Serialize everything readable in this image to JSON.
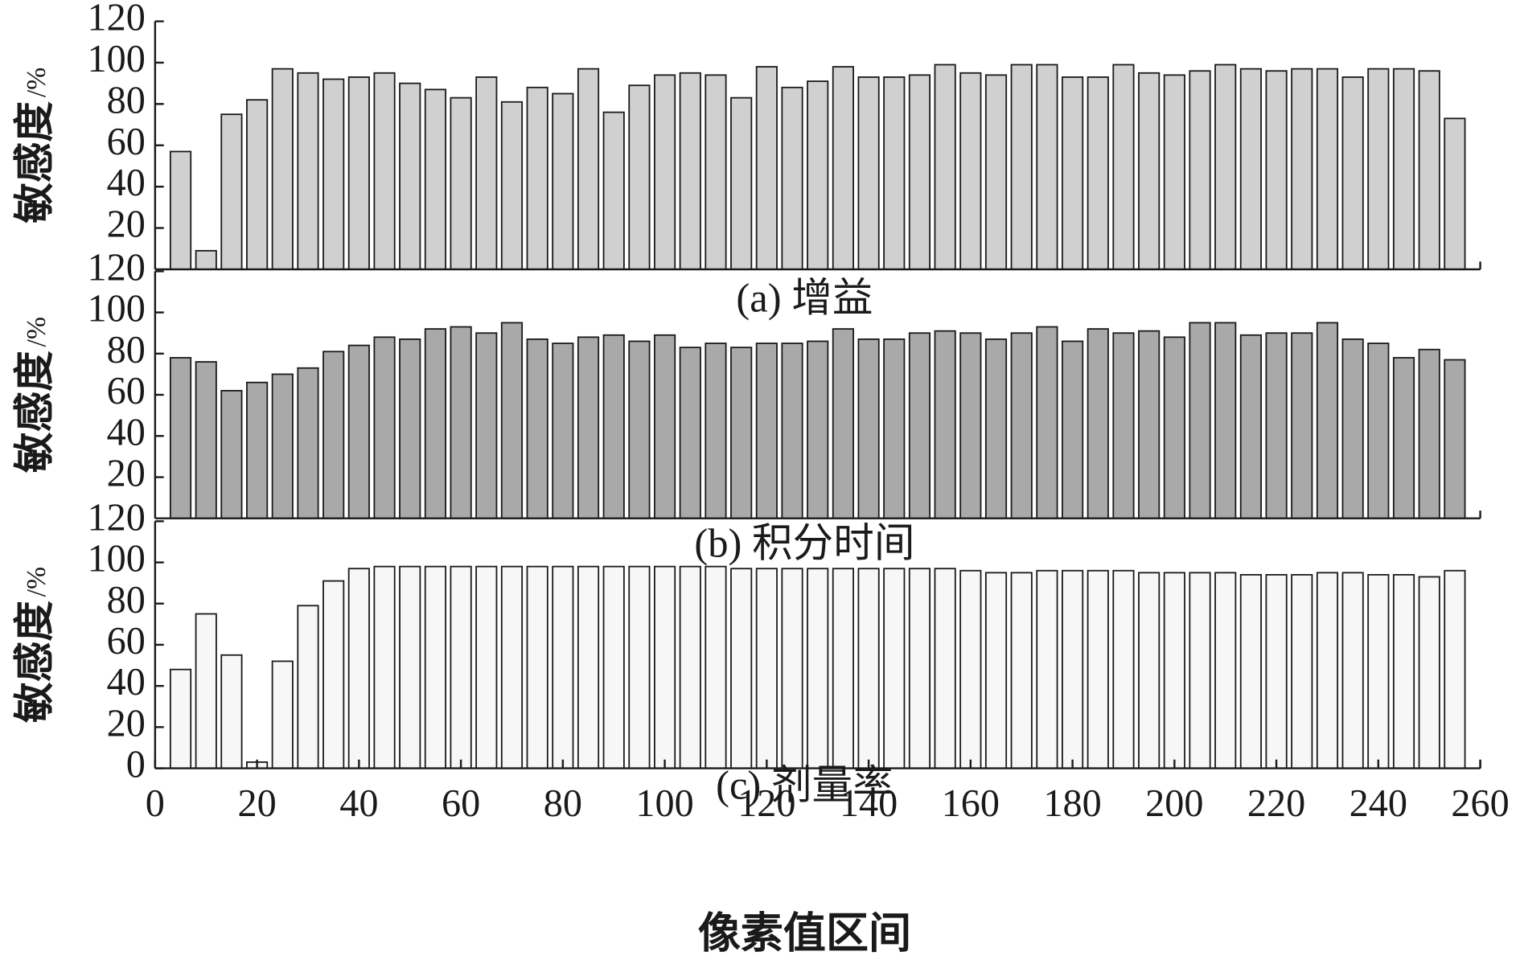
{
  "chart_data": [
    {
      "type": "bar",
      "caption": "(a) 增益",
      "y_label": "敏感度",
      "y_unit": "/%",
      "color": "#d0d0d0",
      "x": [
        5,
        10,
        15,
        20,
        25,
        30,
        35,
        40,
        45,
        50,
        55,
        60,
        65,
        70,
        75,
        80,
        85,
        90,
        95,
        100,
        105,
        110,
        115,
        120,
        125,
        130,
        135,
        140,
        145,
        150,
        155,
        160,
        165,
        170,
        175,
        180,
        185,
        190,
        195,
        200,
        205,
        210,
        215,
        220,
        225,
        230,
        235,
        240,
        245,
        250,
        255
      ],
      "values": [
        57,
        9,
        75,
        82,
        97,
        95,
        92,
        93,
        95,
        90,
        87,
        83,
        93,
        81,
        88,
        85,
        97,
        76,
        89,
        94,
        95,
        94,
        83,
        98,
        88,
        91,
        98,
        93,
        93,
        94,
        99,
        95,
        94,
        99,
        99,
        93,
        93,
        99,
        95,
        94,
        96,
        99,
        97,
        96,
        97,
        97,
        93,
        97,
        97,
        96,
        73
      ],
      "xlim": [
        0,
        260
      ],
      "ylim": [
        0,
        120
      ],
      "yticks": [
        20,
        40,
        60,
        80,
        100,
        120
      ]
    },
    {
      "type": "bar",
      "caption": "(b) 积分时间",
      "y_label": "敏感度",
      "y_unit": "/%",
      "color": "#a9a9a9",
      "x": [
        5,
        10,
        15,
        20,
        25,
        30,
        35,
        40,
        45,
        50,
        55,
        60,
        65,
        70,
        75,
        80,
        85,
        90,
        95,
        100,
        105,
        110,
        115,
        120,
        125,
        130,
        135,
        140,
        145,
        150,
        155,
        160,
        165,
        170,
        175,
        180,
        185,
        190,
        195,
        200,
        205,
        210,
        215,
        220,
        225,
        230,
        235,
        240,
        245,
        250,
        255
      ],
      "values": [
        78,
        76,
        62,
        66,
        70,
        73,
        81,
        84,
        88,
        87,
        92,
        93,
        90,
        95,
        87,
        85,
        88,
        89,
        86,
        89,
        83,
        85,
        83,
        85,
        85,
        86,
        92,
        87,
        87,
        90,
        91,
        90,
        87,
        90,
        93,
        86,
        92,
        90,
        91,
        88,
        95,
        95,
        89,
        90,
        90,
        95,
        87,
        85,
        78,
        82,
        77
      ],
      "xlim": [
        0,
        260
      ],
      "ylim": [
        0,
        120
      ],
      "yticks": [
        20,
        40,
        60,
        80,
        100,
        120
      ]
    },
    {
      "type": "bar",
      "caption": "(c) 剂量率",
      "y_label": "敏感度",
      "y_unit": "/%",
      "color": "#f7f7f7",
      "x_label": "像素值区间",
      "x": [
        5,
        10,
        15,
        20,
        25,
        30,
        35,
        40,
        45,
        50,
        55,
        60,
        65,
        70,
        75,
        80,
        85,
        90,
        95,
        100,
        105,
        110,
        115,
        120,
        125,
        130,
        135,
        140,
        145,
        150,
        155,
        160,
        165,
        170,
        175,
        180,
        185,
        190,
        195,
        200,
        205,
        210,
        215,
        220,
        225,
        230,
        235,
        240,
        245,
        250,
        255
      ],
      "values": [
        48,
        75,
        55,
        3,
        52,
        79,
        91,
        97,
        98,
        98,
        98,
        98,
        98,
        98,
        98,
        98,
        98,
        98,
        98,
        98,
        98,
        98,
        97,
        97,
        97,
        97,
        97,
        97,
        97,
        97,
        97,
        96,
        95,
        95,
        96,
        96,
        96,
        96,
        95,
        95,
        95,
        95,
        94,
        94,
        94,
        95,
        95,
        94,
        94,
        93,
        96
      ],
      "xlim": [
        0,
        260
      ],
      "xticks": [
        0,
        20,
        40,
        60,
        80,
        100,
        120,
        140,
        160,
        180,
        200,
        220,
        240,
        260
      ],
      "ylim": [
        0,
        120
      ],
      "yticks": [
        0,
        20,
        40,
        60,
        80,
        100,
        120
      ]
    }
  ]
}
